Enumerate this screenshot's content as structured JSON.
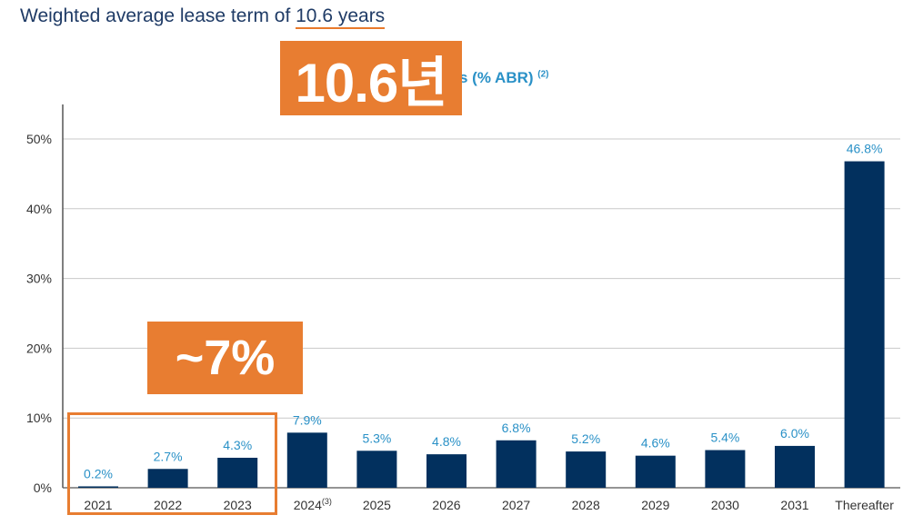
{
  "headline": {
    "prefix": "Weighted average lease term of ",
    "value": "10.6 years"
  },
  "subtitle": {
    "text": "s (% ABR)",
    "sup": "(2)"
  },
  "callouts": {
    "term": "10.6년",
    "range": "~7%"
  },
  "chart_data": {
    "type": "bar",
    "categories": [
      "2021",
      "2022",
      "2023",
      "2024",
      "2025",
      "2026",
      "2027",
      "2028",
      "2029",
      "2030",
      "2031",
      "Thereafter"
    ],
    "category_superscripts": {
      "2024": "(3)"
    },
    "values": [
      0.2,
      2.7,
      4.3,
      7.9,
      5.3,
      4.8,
      6.8,
      5.2,
      4.6,
      5.4,
      6.0,
      46.8
    ],
    "data_labels": [
      "0.2%",
      "2.7%",
      "4.3%",
      "7.9%",
      "5.3%",
      "4.8%",
      "6.8%",
      "5.2%",
      "4.6%",
      "5.4%",
      "6.0%",
      "46.8%"
    ],
    "y_ticks": [
      "0%",
      "10%",
      "20%",
      "30%",
      "40%",
      "50%"
    ],
    "ylim": [
      0,
      55
    ],
    "grid": true,
    "bar_color": "#02305e",
    "label_color": "#2a91c7"
  },
  "colors": {
    "accent": "#e87d31",
    "title": "#1f3b66"
  }
}
